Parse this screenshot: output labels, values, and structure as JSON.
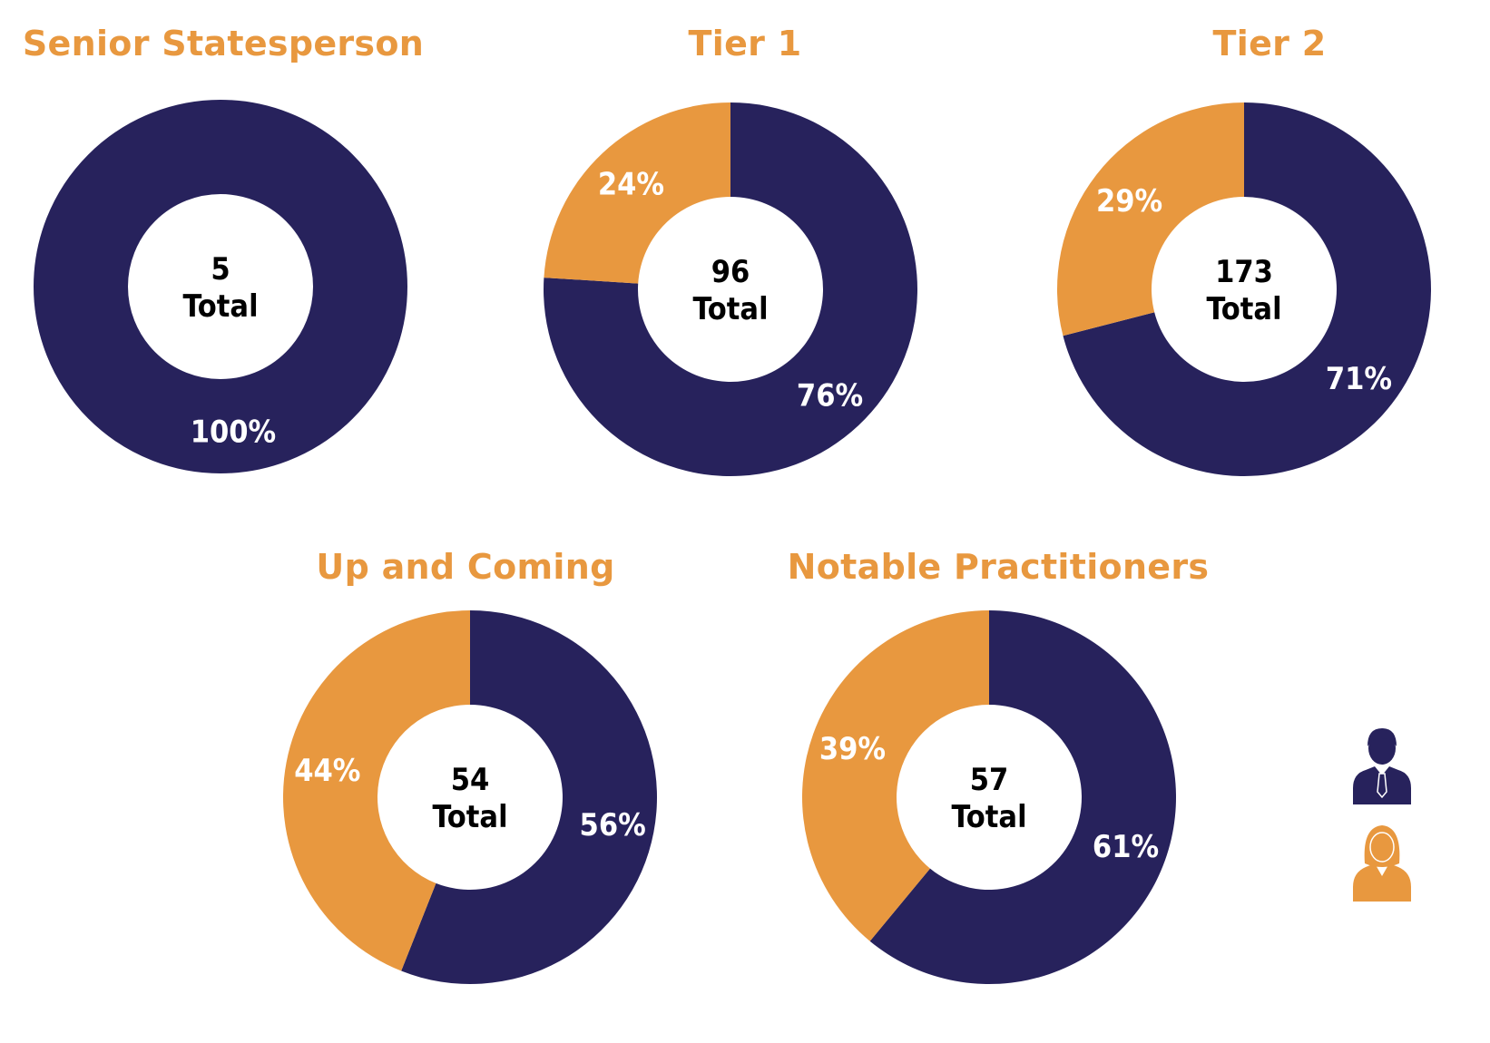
{
  "colors": {
    "male": "#27225c",
    "female": "#e8983f",
    "title": "#e8983f",
    "center_text": "#000000",
    "label_text": "#ffffff"
  },
  "legend": {
    "male_icon": "male-person-icon",
    "female_icon": "female-person-icon",
    "placement": "right"
  },
  "chart_data": [
    {
      "type": "pie",
      "title": "Senior Statesperson",
      "total": "5",
      "total_label": "Total",
      "slices": [
        {
          "series": "male",
          "value": 100,
          "label": "100%"
        }
      ]
    },
    {
      "type": "pie",
      "title": "Tier 1",
      "total": "96",
      "total_label": "Total",
      "slices": [
        {
          "series": "male",
          "value": 76,
          "label": "76%"
        },
        {
          "series": "female",
          "value": 24,
          "label": "24%"
        }
      ]
    },
    {
      "type": "pie",
      "title": "Tier 2",
      "total": "173",
      "total_label": "Total",
      "slices": [
        {
          "series": "male",
          "value": 71,
          "label": "71%"
        },
        {
          "series": "female",
          "value": 29,
          "label": "29%"
        }
      ]
    },
    {
      "type": "pie",
      "title": "Up and Coming",
      "total": "54",
      "total_label": "Total",
      "slices": [
        {
          "series": "male",
          "value": 56,
          "label": "56%"
        },
        {
          "series": "female",
          "value": 44,
          "label": "44%"
        }
      ]
    },
    {
      "type": "pie",
      "title": "Notable Practitioners",
      "total": "57",
      "total_label": "Total",
      "slices": [
        {
          "series": "male",
          "value": 61,
          "label": "61%"
        },
        {
          "series": "female",
          "value": 39,
          "label": "39%"
        }
      ]
    }
  ]
}
